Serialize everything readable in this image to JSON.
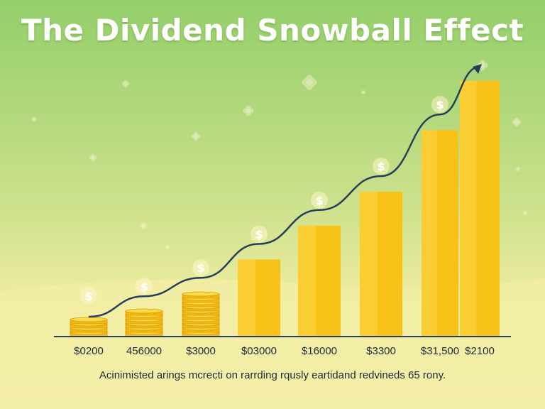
{
  "title": "The Dividend Snowball Effect",
  "caption": "Acinimisted arings mcrecti on rarrding rqusly eartidand redvineds 65 rony.",
  "colors": {
    "bar": "#f8c118",
    "bar_highlight": "#fcd94a",
    "coin": "#f2b80f",
    "coin_edge": "#d99a06",
    "curve": "#27405a",
    "axis": "#27405a",
    "dollar_badge": "#fff6c8"
  },
  "icons": [
    "dollar-badge-icon",
    "sparkle-icon",
    "arrow-head-icon",
    "coin-stack-icon"
  ],
  "chart_data": {
    "type": "bar",
    "title": "The Dividend Snowball Effect",
    "categories": [
      "$0200",
      "456000",
      "$3000",
      "$03000",
      "$16000",
      "$3300",
      "$31,500",
      "$2100"
    ],
    "values": [
      5,
      8,
      14,
      25,
      36,
      47,
      67,
      83
    ],
    "render_as": [
      "coins",
      "coins",
      "coins",
      "bar",
      "bar",
      "bar",
      "bar",
      "bar"
    ],
    "ylim": [
      0,
      100
    ],
    "xlabel": "",
    "ylabel": "",
    "grid": false,
    "legend": "none",
    "trend_curve": true
  }
}
